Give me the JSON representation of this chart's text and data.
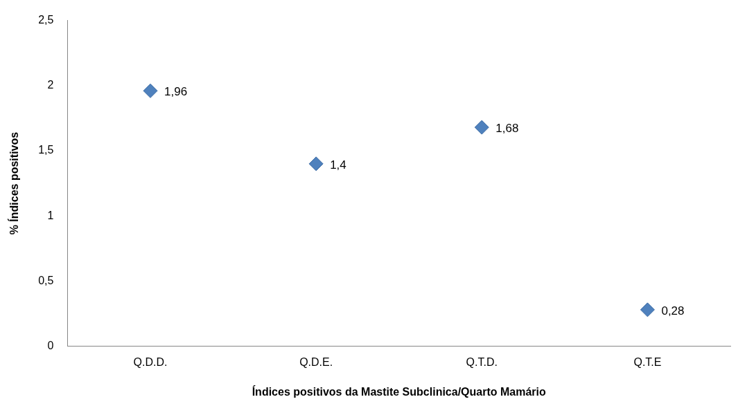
{
  "chart_data": {
    "type": "scatter",
    "xlabel": "Índices positivos da Mastite Subclinica/Quarto Mamário",
    "ylabel": "% Índices positivos",
    "categories": [
      "Q.D.D.",
      "Q.D.E.",
      "Q.T.D.",
      "Q.T.E"
    ],
    "series": [
      {
        "color": "#4f81bd",
        "values": [
          1.96,
          1.4,
          1.68,
          0.28
        ],
        "value_labels": [
          "1,96",
          "1,4",
          "1,68",
          "0,28"
        ]
      }
    ],
    "ylim": [
      0,
      2.5
    ],
    "yticks": [
      0,
      {
        "value": 0.5,
        "label": "0,5"
      },
      1,
      {
        "value": 1.5,
        "label": "1,5"
      },
      2,
      {
        "value": 2.5,
        "label": "2,5"
      }
    ],
    "marker": "diamond",
    "grid": false,
    "legend": false
  }
}
